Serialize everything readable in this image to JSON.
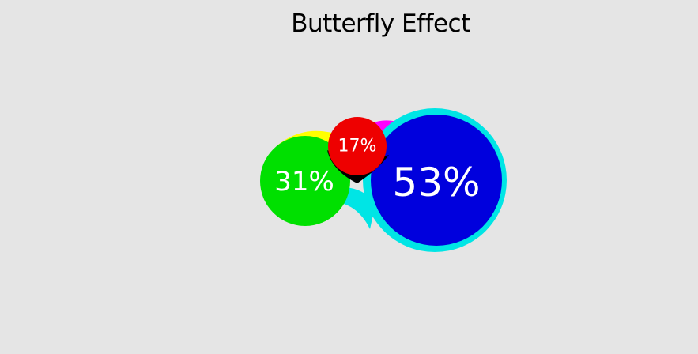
{
  "chart_data": {
    "type": "bubble-cluster",
    "title": "Butterfly Effect",
    "bubbles": [
      {
        "label": "53%",
        "value": 53,
        "color": "#0000dd",
        "halo": "#00e5e5"
      },
      {
        "label": "31%",
        "value": 31,
        "color": "#00e000"
      },
      {
        "label": "17%",
        "value": 17,
        "color": "#ee0000"
      }
    ],
    "connectors": {
      "green_red": "#ffff00",
      "red_blue": "#ff00ff",
      "green_blue": "#00e5e5",
      "overlap": "#000000"
    }
  }
}
